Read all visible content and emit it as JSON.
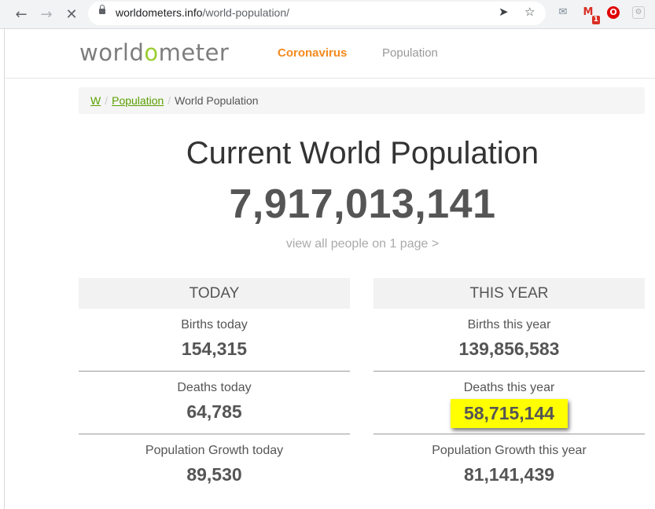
{
  "browser": {
    "url_domain": "worldometers.info",
    "url_path": "/world-population/",
    "back_icon": "←",
    "forward_icon": "→",
    "stop_icon": "✕",
    "send_icon": "➤",
    "star_icon": "☆",
    "mail_badge": "1",
    "ext_opera_glyph": "O",
    "ext_misc_glyph": "⚙",
    "ext_mail_glyph": "✉",
    "ext_gmail_glyph": "M"
  },
  "header": {
    "logo_prefix": "world",
    "logo_o": "o",
    "logo_suffix": "meter",
    "nav": {
      "coronavirus": "Coronavirus",
      "population": "Population"
    }
  },
  "breadcrumb": {
    "home": "W",
    "population": "Population",
    "current": "World Population",
    "separator": "/"
  },
  "main": {
    "title": "Current World Population",
    "counter": "7,917,013,141",
    "view_all": "view all people on 1 page >"
  },
  "today": {
    "header": "TODAY",
    "births_label": "Births today",
    "births_value": "154,315",
    "deaths_label": "Deaths today",
    "deaths_value": "64,785",
    "growth_label": "Population Growth today",
    "growth_value": "89,530"
  },
  "this_year": {
    "header": "THIS YEAR",
    "births_label": "Births this year",
    "births_value": "139,856,583",
    "deaths_label": "Deaths this year",
    "deaths_value": "58,715,144",
    "growth_label": "Population Growth this year",
    "growth_value": "81,141,439"
  },
  "colors": {
    "accent_orange": "#f58a1f",
    "link_green": "#59a000",
    "logo_green": "#9acd32",
    "highlight_yellow": "#ffff00"
  }
}
